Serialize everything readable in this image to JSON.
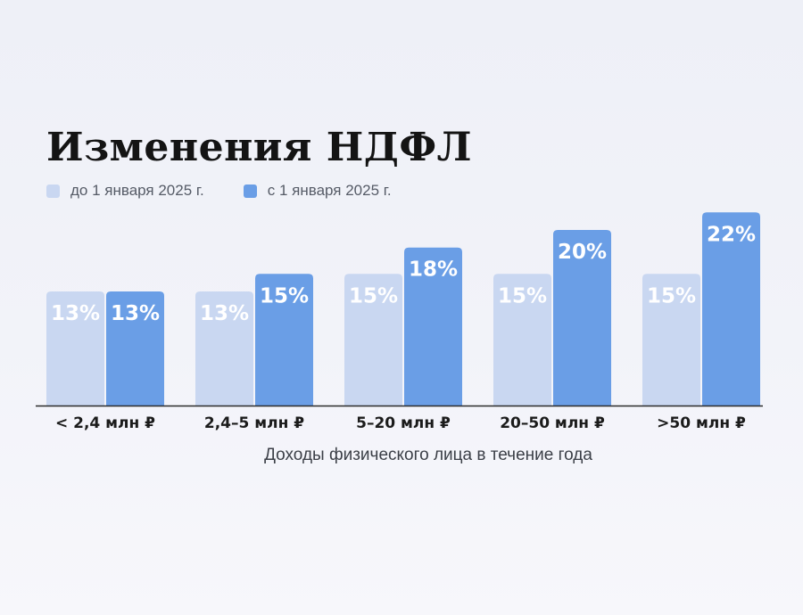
{
  "title": "Изменения НДФЛ",
  "legend": [
    {
      "label": "до 1 января 2025 г.",
      "color": "#c9d7f1"
    },
    {
      "label": "с 1 января 2025 г.",
      "color": "#6a9ee6"
    }
  ],
  "chart_data": {
    "type": "bar",
    "title": "Изменения НДФЛ",
    "xlabel": "Доходы физического лица в течение года",
    "ylabel": "",
    "categories": [
      "< 2,4 млн ₽",
      "2,4–5 млн ₽",
      "5–20 млн ₽",
      "20–50 млн ₽",
      ">50 млн ₽"
    ],
    "series": [
      {
        "name": "до 1 января 2025 г.",
        "values": [
          13,
          13,
          15,
          15,
          15
        ],
        "color": "#c9d7f1"
      },
      {
        "name": "с 1 января 2025 г.",
        "values": [
          13,
          15,
          18,
          20,
          22
        ],
        "color": "#6a9ee6"
      }
    ],
    "value_suffix": "%",
    "ylim": [
      0,
      22
    ],
    "grid": false,
    "legend_position": "top-left"
  }
}
